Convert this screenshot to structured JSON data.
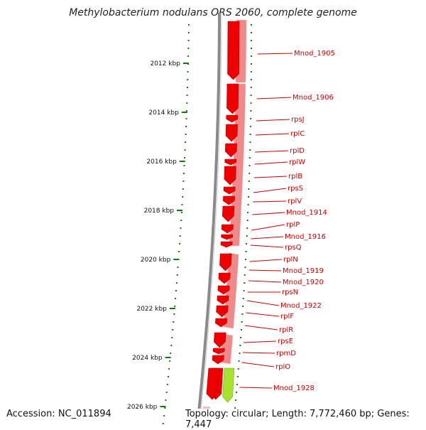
{
  "title": "Methylobacterium nodulans ORS 2060, complete genome",
  "accession_text": "Accession: NC_011894",
  "topology_text": "Topology: circular; Length: 7,772,460 bp; Genes: 7,447",
  "colors": {
    "gene": "#ee0000",
    "gene_light": "#f08a8a",
    "highlight": "#a6e22e",
    "tick": "#117711",
    "backbone": "#8a8a8a",
    "label": "#cc0000"
  },
  "scale_ticks": [
    {
      "label": "2012 kbp",
      "kbp": 2012
    },
    {
      "label": "2014 kbp",
      "kbp": 2014
    },
    {
      "label": "2016 kbp",
      "kbp": 2016
    },
    {
      "label": "2018 kbp",
      "kbp": 2018
    },
    {
      "label": "2020 kbp",
      "kbp": 2020
    },
    {
      "label": "2022 kbp",
      "kbp": 2022
    },
    {
      "label": "2024 kbp",
      "kbp": 2024
    },
    {
      "label": "2026 kbp",
      "kbp": 2026
    }
  ],
  "genes": [
    {
      "label": "Mnod_1905"
    },
    {
      "label": "Mnod_1906"
    },
    {
      "label": "rpsJ"
    },
    {
      "label": "rplC"
    },
    {
      "label": "rplD"
    },
    {
      "label": "rplW"
    },
    {
      "label": "rplB"
    },
    {
      "label": "rpsS"
    },
    {
      "label": "rplV"
    },
    {
      "label": "Mnod_1914"
    },
    {
      "label": "rplP"
    },
    {
      "label": "Mnod_1916"
    },
    {
      "label": "rpsQ"
    },
    {
      "label": "rplN"
    },
    {
      "label": "Mnod_1919"
    },
    {
      "label": "Mnod_1920"
    },
    {
      "label": "rpsN"
    },
    {
      "label": "Mnod_1922"
    },
    {
      "label": "rplF"
    },
    {
      "label": "rplR"
    },
    {
      "label": "rpsE"
    },
    {
      "label": "rpmD"
    },
    {
      "label": "rplO"
    },
    {
      "label": "Mnod_1928",
      "highlight": true
    }
  ]
}
